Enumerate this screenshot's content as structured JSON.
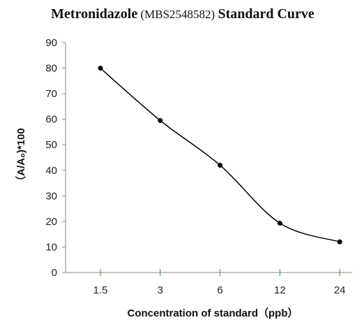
{
  "chart_data": {
    "type": "line",
    "title": {
      "part1": "Metronidazole",
      "part2": " (MBS2548582) ",
      "part3": "Standard Curve"
    },
    "xlabel": "Concentration of standard（ppb）",
    "ylabel": "（A/A₀)*100",
    "categories": [
      "1.5",
      "3",
      "6",
      "12",
      "24"
    ],
    "values": [
      80,
      59.5,
      42,
      19.3,
      12
    ],
    "ylim": [
      0,
      90
    ],
    "yticks": [
      0,
      10,
      20,
      30,
      40,
      50,
      60,
      70,
      80,
      90
    ],
    "smooth": true,
    "grid": false,
    "legend": "none"
  }
}
